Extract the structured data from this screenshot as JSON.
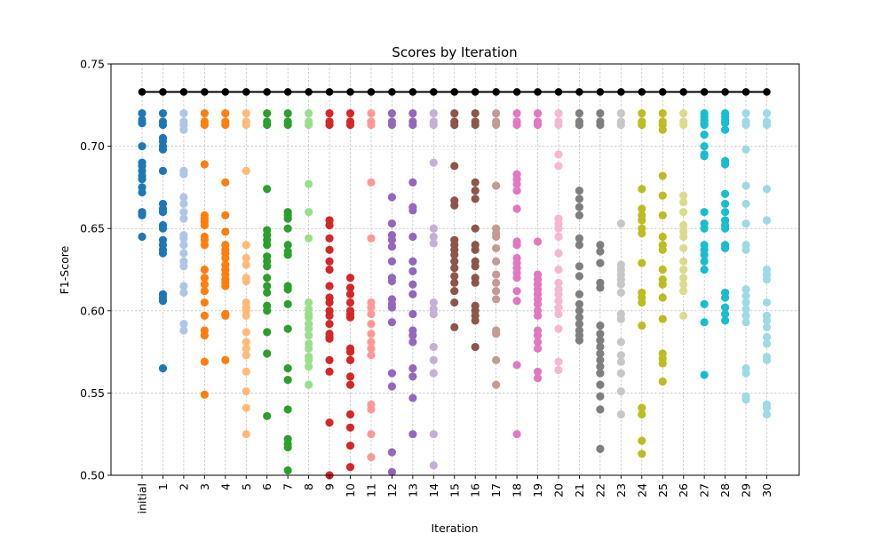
{
  "chart_data": {
    "type": "scatter",
    "title": "Scores by Iteration",
    "xlabel": "Iteration",
    "ylabel": "F1-Score",
    "ylim": [
      0.5,
      0.75
    ],
    "yticks": [
      "0.50",
      "0.55",
      "0.60",
      "0.65",
      "0.70",
      "0.75"
    ],
    "categories": [
      "initial",
      "1",
      "2",
      "3",
      "4",
      "5",
      "6",
      "7",
      "8",
      "9",
      "10",
      "11",
      "12",
      "13",
      "14",
      "15",
      "16",
      "17",
      "18",
      "19",
      "20",
      "21",
      "22",
      "23",
      "24",
      "25",
      "26",
      "27",
      "28",
      "29",
      "30"
    ],
    "grid": true,
    "best_line": {
      "color": "#000000",
      "value": 0.733
    },
    "colors": [
      "#1f77b4",
      "#1f77b4",
      "#aec7e8",
      "#ff7f0e",
      "#ff7f0e",
      "#ffbb78",
      "#2ca02c",
      "#2ca02c",
      "#98df8a",
      "#d62728",
      "#d62728",
      "#ff9896",
      "#9467bd",
      "#9467bd",
      "#c5b0d5",
      "#8c564b",
      "#8c564b",
      "#c49c94",
      "#e377c2",
      "#e377c2",
      "#f7b6d2",
      "#7f7f7f",
      "#7f7f7f",
      "#c7c7c7",
      "#bcbd22",
      "#bcbd22",
      "#dbdb8d",
      "#17becf",
      "#17becf",
      "#9edae5",
      "#9edae5"
    ],
    "series": [
      [
        0.72,
        0.716,
        0.714,
        0.7,
        0.69,
        0.688,
        0.685,
        0.682,
        0.68,
        0.675,
        0.672,
        0.66,
        0.659,
        0.658,
        0.645
      ],
      [
        0.72,
        0.715,
        0.713,
        0.705,
        0.703,
        0.7,
        0.698,
        0.685,
        0.665,
        0.662,
        0.66,
        0.652,
        0.65,
        0.643,
        0.64,
        0.637,
        0.635,
        0.61,
        0.608,
        0.606,
        0.565
      ],
      [
        0.72,
        0.715,
        0.713,
        0.71,
        0.685,
        0.683,
        0.669,
        0.665,
        0.66,
        0.656,
        0.646,
        0.644,
        0.64,
        0.635,
        0.63,
        0.627,
        0.615,
        0.611,
        0.592,
        0.588
      ],
      [
        0.72,
        0.715,
        0.713,
        0.689,
        0.658,
        0.656,
        0.654,
        0.652,
        0.645,
        0.643,
        0.64,
        0.625,
        0.62,
        0.616,
        0.612,
        0.605,
        0.597,
        0.588,
        0.585,
        0.569,
        0.549
      ],
      [
        0.72,
        0.715,
        0.713,
        0.678,
        0.658,
        0.648,
        0.64,
        0.637,
        0.635,
        0.632,
        0.628,
        0.625,
        0.622,
        0.619,
        0.617,
        0.615,
        0.598,
        0.597,
        0.57
      ],
      [
        0.72,
        0.715,
        0.713,
        0.685,
        0.64,
        0.632,
        0.628,
        0.62,
        0.618,
        0.605,
        0.602,
        0.6,
        0.597,
        0.587,
        0.581,
        0.577,
        0.573,
        0.563,
        0.551,
        0.541,
        0.525
      ],
      [
        0.72,
        0.715,
        0.713,
        0.674,
        0.649,
        0.646,
        0.643,
        0.64,
        0.633,
        0.63,
        0.627,
        0.62,
        0.615,
        0.611,
        0.603,
        0.6,
        0.587,
        0.574,
        0.536
      ],
      [
        0.72,
        0.715,
        0.713,
        0.66,
        0.658,
        0.656,
        0.65,
        0.64,
        0.636,
        0.634,
        0.615,
        0.613,
        0.604,
        0.589,
        0.565,
        0.558,
        0.54,
        0.522,
        0.519,
        0.517,
        0.503
      ],
      [
        0.72,
        0.715,
        0.713,
        0.677,
        0.66,
        0.644,
        0.605,
        0.601,
        0.598,
        0.596,
        0.592,
        0.589,
        0.585,
        0.58,
        0.577,
        0.572,
        0.57,
        0.566,
        0.555
      ],
      [
        0.72,
        0.715,
        0.713,
        0.655,
        0.652,
        0.644,
        0.637,
        0.63,
        0.625,
        0.615,
        0.608,
        0.605,
        0.6,
        0.597,
        0.592,
        0.586,
        0.584,
        0.583,
        0.57,
        0.563,
        0.532,
        0.5
      ],
      [
        0.72,
        0.715,
        0.713,
        0.62,
        0.614,
        0.61,
        0.605,
        0.6,
        0.598,
        0.596,
        0.577,
        0.575,
        0.57,
        0.56,
        0.555,
        0.537,
        0.529,
        0.518,
        0.505
      ],
      [
        0.72,
        0.715,
        0.713,
        0.678,
        0.644,
        0.605,
        0.602,
        0.598,
        0.592,
        0.586,
        0.581,
        0.577,
        0.573,
        0.543,
        0.54,
        0.525,
        0.511
      ],
      [
        0.72,
        0.715,
        0.713,
        0.669,
        0.653,
        0.646,
        0.643,
        0.639,
        0.63,
        0.62,
        0.618,
        0.607,
        0.604,
        0.602,
        0.593,
        0.562,
        0.554,
        0.514,
        0.502
      ],
      [
        0.72,
        0.715,
        0.713,
        0.678,
        0.663,
        0.661,
        0.645,
        0.63,
        0.624,
        0.616,
        0.61,
        0.598,
        0.588,
        0.585,
        0.581,
        0.565,
        0.56,
        0.547,
        0.525
      ],
      [
        0.72,
        0.715,
        0.713,
        0.69,
        0.65,
        0.645,
        0.641,
        0.605,
        0.601,
        0.598,
        0.578,
        0.57,
        0.562,
        0.525,
        0.506
      ],
      [
        0.72,
        0.715,
        0.713,
        0.688,
        0.667,
        0.664,
        0.643,
        0.64,
        0.637,
        0.634,
        0.63,
        0.626,
        0.621,
        0.617,
        0.612,
        0.605,
        0.59
      ],
      [
        0.72,
        0.715,
        0.713,
        0.678,
        0.673,
        0.668,
        0.65,
        0.64,
        0.637,
        0.63,
        0.627,
        0.62,
        0.617,
        0.603,
        0.6,
        0.597,
        0.594,
        0.578
      ],
      [
        0.72,
        0.715,
        0.713,
        0.676,
        0.65,
        0.647,
        0.645,
        0.638,
        0.63,
        0.622,
        0.617,
        0.612,
        0.607,
        0.588,
        0.586,
        0.57,
        0.555
      ],
      [
        0.72,
        0.715,
        0.713,
        0.683,
        0.68,
        0.677,
        0.673,
        0.662,
        0.642,
        0.64,
        0.632,
        0.629,
        0.626,
        0.623,
        0.62,
        0.612,
        0.606,
        0.567,
        0.525
      ],
      [
        0.72,
        0.715,
        0.713,
        0.642,
        0.622,
        0.619,
        0.616,
        0.613,
        0.61,
        0.607,
        0.604,
        0.6,
        0.597,
        0.588,
        0.585,
        0.581,
        0.577,
        0.563,
        0.559
      ],
      [
        0.72,
        0.715,
        0.713,
        0.695,
        0.688,
        0.656,
        0.653,
        0.65,
        0.645,
        0.635,
        0.625,
        0.617,
        0.613,
        0.61,
        0.606,
        0.602,
        0.598,
        0.589,
        0.569,
        0.564
      ],
      [
        0.72,
        0.715,
        0.713,
        0.673,
        0.668,
        0.663,
        0.658,
        0.644,
        0.64,
        0.627,
        0.621,
        0.61,
        0.604,
        0.6,
        0.596,
        0.592,
        0.588,
        0.585,
        0.582
      ],
      [
        0.72,
        0.715,
        0.713,
        0.64,
        0.636,
        0.629,
        0.617,
        0.614,
        0.591,
        0.586,
        0.582,
        0.578,
        0.574,
        0.57,
        0.566,
        0.562,
        0.555,
        0.548,
        0.54,
        0.516
      ],
      [
        0.72,
        0.715,
        0.713,
        0.653,
        0.628,
        0.625,
        0.622,
        0.619,
        0.616,
        0.611,
        0.598,
        0.595,
        0.581,
        0.573,
        0.569,
        0.562,
        0.551,
        0.537
      ],
      [
        0.72,
        0.715,
        0.713,
        0.674,
        0.662,
        0.658,
        0.655,
        0.65,
        0.647,
        0.629,
        0.611,
        0.608,
        0.605,
        0.591,
        0.541,
        0.537,
        0.521,
        0.513
      ],
      [
        0.72,
        0.715,
        0.713,
        0.71,
        0.682,
        0.67,
        0.658,
        0.645,
        0.64,
        0.637,
        0.625,
        0.619,
        0.616,
        0.608,
        0.595,
        0.574,
        0.571,
        0.568,
        0.557
      ],
      [
        0.72,
        0.715,
        0.713,
        0.67,
        0.666,
        0.66,
        0.652,
        0.648,
        0.645,
        0.638,
        0.63,
        0.625,
        0.62,
        0.616,
        0.612,
        0.597
      ],
      [
        0.72,
        0.718,
        0.716,
        0.714,
        0.713,
        0.707,
        0.7,
        0.695,
        0.694,
        0.66,
        0.653,
        0.65,
        0.64,
        0.637,
        0.634,
        0.63,
        0.625,
        0.604,
        0.593,
        0.561
      ],
      [
        0.72,
        0.718,
        0.716,
        0.714,
        0.71,
        0.691,
        0.689,
        0.671,
        0.665,
        0.66,
        0.655,
        0.652,
        0.65,
        0.64,
        0.638,
        0.611,
        0.608,
        0.602,
        0.598,
        0.594
      ],
      [
        0.72,
        0.715,
        0.713,
        0.698,
        0.676,
        0.665,
        0.653,
        0.64,
        0.637,
        0.613,
        0.609,
        0.605,
        0.601,
        0.597,
        0.593,
        0.565,
        0.562,
        0.548,
        0.546
      ],
      [
        0.72,
        0.715,
        0.713,
        0.674,
        0.655,
        0.625,
        0.622,
        0.619,
        0.605,
        0.597,
        0.594,
        0.59,
        0.584,
        0.58,
        0.572,
        0.57,
        0.543,
        0.541,
        0.537
      ]
    ]
  }
}
